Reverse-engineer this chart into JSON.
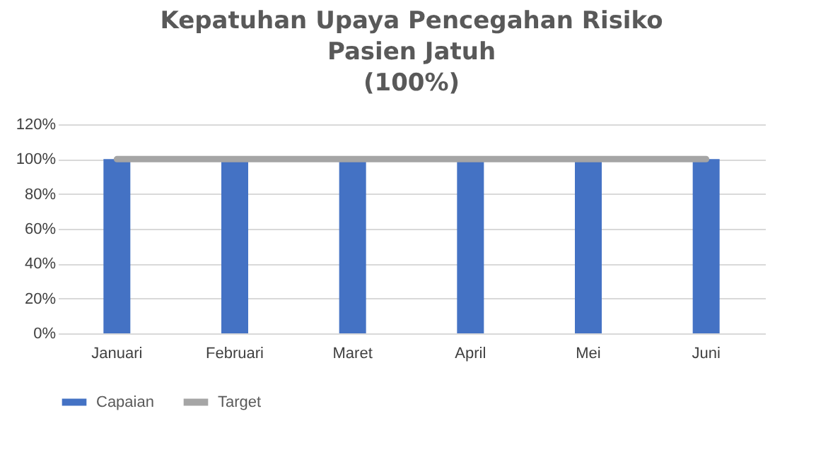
{
  "chart_data": {
    "type": "bar",
    "title": "Kepatuhan Upaya Pencegahan Risiko Pasien Jatuh (100%)",
    "categories": [
      "Januari",
      "Februari",
      "Maret",
      "April",
      "Mei",
      "Juni"
    ],
    "series": [
      {
        "name": "Capaian",
        "color": "#4472c4",
        "values": [
          100,
          100,
          100,
          100,
          100,
          100
        ]
      },
      {
        "name": "Target",
        "type": "line",
        "color": "#a5a5a5",
        "values": [
          100,
          100,
          100,
          100,
          100,
          100
        ]
      }
    ],
    "ylim": [
      0,
      120
    ],
    "yticks": [
      {
        "value": 0,
        "label": "0%"
      },
      {
        "value": 20,
        "label": "20%"
      },
      {
        "value": 40,
        "label": "40%"
      },
      {
        "value": 60,
        "label": "60%"
      },
      {
        "value": 80,
        "label": "80%"
      },
      {
        "value": 100,
        "label": "100%"
      },
      {
        "value": 120,
        "label": "120%"
      }
    ],
    "grid": "y",
    "legend": "bottom"
  }
}
